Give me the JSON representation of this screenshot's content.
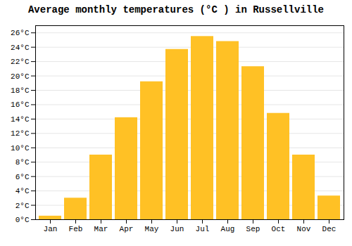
{
  "chart_data": {
    "type": "bar",
    "title": "Average monthly temperatures (°C ) in Russellville",
    "categories": [
      "Jan",
      "Feb",
      "Mar",
      "Apr",
      "May",
      "Jun",
      "Jul",
      "Aug",
      "Sep",
      "Oct",
      "Nov",
      "Dec"
    ],
    "values": [
      0.5,
      3.0,
      9.0,
      14.2,
      19.2,
      23.7,
      25.5,
      24.8,
      21.3,
      14.8,
      9.0,
      3.3
    ],
    "color": "#FFC125",
    "ylim": [
      0,
      27
    ],
    "yticks": [
      {
        "value": 0,
        "label": "0°C"
      },
      {
        "value": 2,
        "label": "2°C"
      },
      {
        "value": 4,
        "label": "4°C"
      },
      {
        "value": 6,
        "label": "6°C"
      },
      {
        "value": 8,
        "label": "8°C"
      },
      {
        "value": 10,
        "label": "10°C"
      },
      {
        "value": 12,
        "label": "12°C"
      },
      {
        "value": 14,
        "label": "14°C"
      },
      {
        "value": 16,
        "label": "16°C"
      },
      {
        "value": 18,
        "label": "18°C"
      },
      {
        "value": 20,
        "label": "20°C"
      },
      {
        "value": 22,
        "label": "22°C"
      },
      {
        "value": 24,
        "label": "24°C"
      },
      {
        "value": 26,
        "label": "26°C"
      }
    ],
    "grid": true
  }
}
